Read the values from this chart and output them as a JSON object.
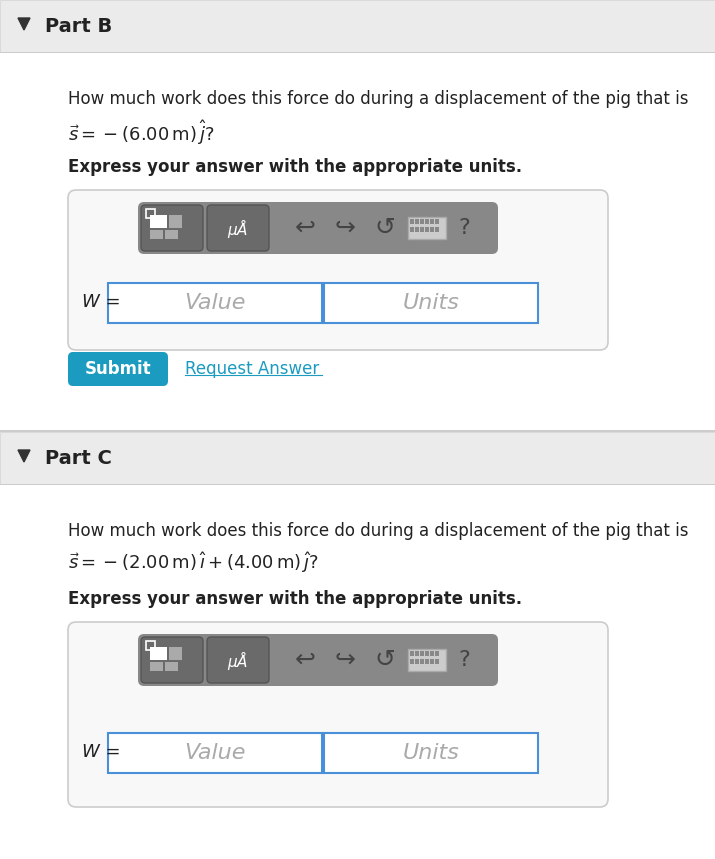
{
  "bg_color": "#f5f5f5",
  "white": "#ffffff",
  "border_color": "#cccccc",
  "teal_color": "#1a9bbf",
  "submit_color": "#1a9bbf",
  "header_bg": "#e8e8e8",
  "dark_gray": "#666666",
  "toolbar_bg": "#7a7a7a",
  "input_border": "#4a90d9",
  "part_b_title": "Part B",
  "part_c_title": "Part C",
  "part_b_question_line1": "How much work does this force do during a displacement of the pig that is",
  "part_c_question_line1": "How much work does this force do during a displacement of the pig that is",
  "express_text": "Express your answer with the appropriate units.",
  "w_label": "W =",
  "value_placeholder": "Value",
  "units_placeholder": "Units",
  "submit_text": "Submit",
  "request_answer_text": "Request Answer"
}
